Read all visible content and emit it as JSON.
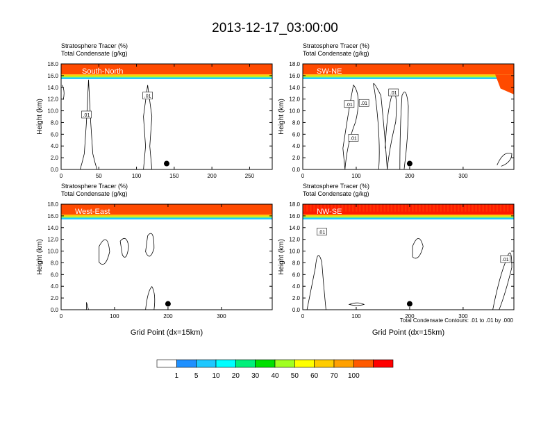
{
  "page": {
    "title": "2013-12-17_03:00:00"
  },
  "footnote": "Total Condensate Contours: .01 to .01 by .000",
  "colorbar": {
    "colors": [
      "#ffffff",
      "#1e90ff",
      "#1ec8ff",
      "#00ffff",
      "#00f07a",
      "#00e000",
      "#a0ff20",
      "#ffff00",
      "#ffcc00",
      "#ffa000",
      "#ff5a00",
      "#ff0000"
    ],
    "labels": [
      "1",
      "5",
      "10",
      "20",
      "30",
      "40",
      "50",
      "60",
      "70",
      "100"
    ]
  },
  "palette": {
    "contour": "#000000",
    "tracer_top": "#ff4a00",
    "tracer_top_alt": "#ff1a00"
  },
  "chart_data": [
    {
      "type": "heatmap",
      "panel": "South-North",
      "label_left_1": "Stratosphere Tracer   (%)",
      "label_left_2": "Total Condensate   (g/kg)",
      "cross_section_label": "South-North",
      "ylabel": "Height (km)",
      "xlabel": "",
      "xlim": [
        0,
        280
      ],
      "ylim": [
        0,
        18
      ],
      "xticks": [
        0,
        50,
        100,
        150,
        200,
        250
      ],
      "yticks": [
        "0.0",
        "2.0",
        "4.0",
        "6.0",
        "8.0",
        "10.0",
        "12.0",
        "14.0",
        "16.0",
        "18.0"
      ],
      "tracer_base_km": 15.6,
      "contour_labels": [
        ".01",
        ".01"
      ],
      "marker": {
        "x": 140,
        "y": 1.0
      }
    },
    {
      "type": "heatmap",
      "panel": "SW-NE",
      "label_left_1": "Stratosphere Tracer   (%)",
      "label_left_2": "Total Condensate   (g/kg)",
      "cross_section_label": "SW-NE",
      "ylabel": "Height (km)",
      "xlabel": "",
      "xlim": [
        0,
        395
      ],
      "ylim": [
        0,
        18
      ],
      "xticks": [
        0,
        100,
        200,
        300
      ],
      "yticks": [
        "0.0",
        "2.0",
        "4.0",
        "6.0",
        "8.0",
        "10.0",
        "12.0",
        "14.0",
        "16.0",
        "18.0"
      ],
      "tracer_base_km": 15.6,
      "contour_labels": [
        ".01",
        ".01",
        ".01",
        ".01"
      ],
      "marker": {
        "x": 200,
        "y": 1.0
      }
    },
    {
      "type": "heatmap",
      "panel": "West-East",
      "label_left_1": "Stratosphere Tracer   (%)",
      "label_left_2": "Total Condensate   (g/kg)",
      "cross_section_label": "West-East",
      "ylabel": "Height (km)",
      "xlabel": "Grid Point (dx=15km)",
      "xlim": [
        0,
        395
      ],
      "ylim": [
        0,
        18
      ],
      "xticks": [
        0,
        100,
        200,
        300
      ],
      "yticks": [
        "0.0",
        "2.0",
        "4.0",
        "6.0",
        "8.0",
        "10.0",
        "12.0",
        "14.0",
        "16.0",
        "18.0"
      ],
      "tracer_base_km": 15.6,
      "contour_labels": [],
      "marker": {
        "x": 200,
        "y": 1.0
      }
    },
    {
      "type": "heatmap",
      "panel": "NW-SE",
      "label_left_1": "Stratosphere Tracer   (%)",
      "label_left_2": "Total Condensate   (g/kg)",
      "cross_section_label": "NW-SE",
      "ylabel": "Height (km)",
      "xlabel": "Grid Point (dx=15km)",
      "xlim": [
        0,
        395
      ],
      "ylim": [
        0,
        18
      ],
      "xticks": [
        0,
        100,
        200,
        300
      ],
      "yticks": [
        "0.0",
        "2.0",
        "4.0",
        "6.0",
        "8.0",
        "10.0",
        "12.0",
        "14.0",
        "16.0",
        "18.0"
      ],
      "tracer_base_km": 15.6,
      "contour_labels": [
        ".01",
        ".01"
      ],
      "marker": {
        "x": 200,
        "y": 1.0
      }
    }
  ]
}
